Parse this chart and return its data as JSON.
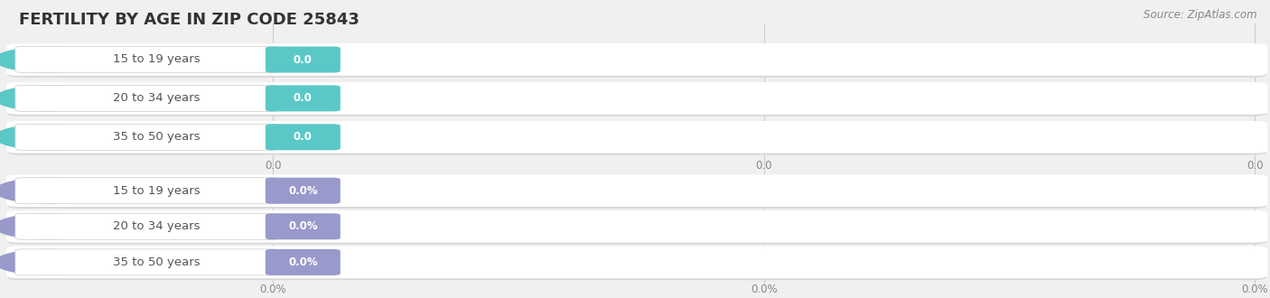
{
  "title": "FERTILITY BY AGE IN ZIP CODE 25843",
  "source": "Source: ZipAtlas.com",
  "background_color": "#f0f0f0",
  "bar_bg_color": "#ffffff",
  "bar_shadow_color": "#d8d8d8",
  "group1": {
    "rows": [
      "15 to 19 years",
      "20 to 34 years",
      "35 to 50 years"
    ],
    "values": [
      0.0,
      0.0,
      0.0
    ],
    "bar_color": "#5bc8c8",
    "label_text_color": "#555555",
    "value_text_color": "#ffffff",
    "x_tick_labels": [
      "0.0",
      "0.0",
      "0.0"
    ],
    "left_circle_color": "#5bc8c8"
  },
  "group2": {
    "rows": [
      "15 to 19 years",
      "20 to 34 years",
      "35 to 50 years"
    ],
    "values": [
      0.0,
      0.0,
      0.0
    ],
    "bar_color": "#9999cc",
    "label_text_color": "#555555",
    "value_text_color": "#ffffff",
    "x_tick_labels": [
      "0.0%",
      "0.0%",
      "0.0%"
    ],
    "left_circle_color": "#9999cc"
  },
  "title_fontsize": 13,
  "label_fontsize": 9.5,
  "value_fontsize": 8.5,
  "tick_fontsize": 8.5,
  "source_fontsize": 8.5
}
